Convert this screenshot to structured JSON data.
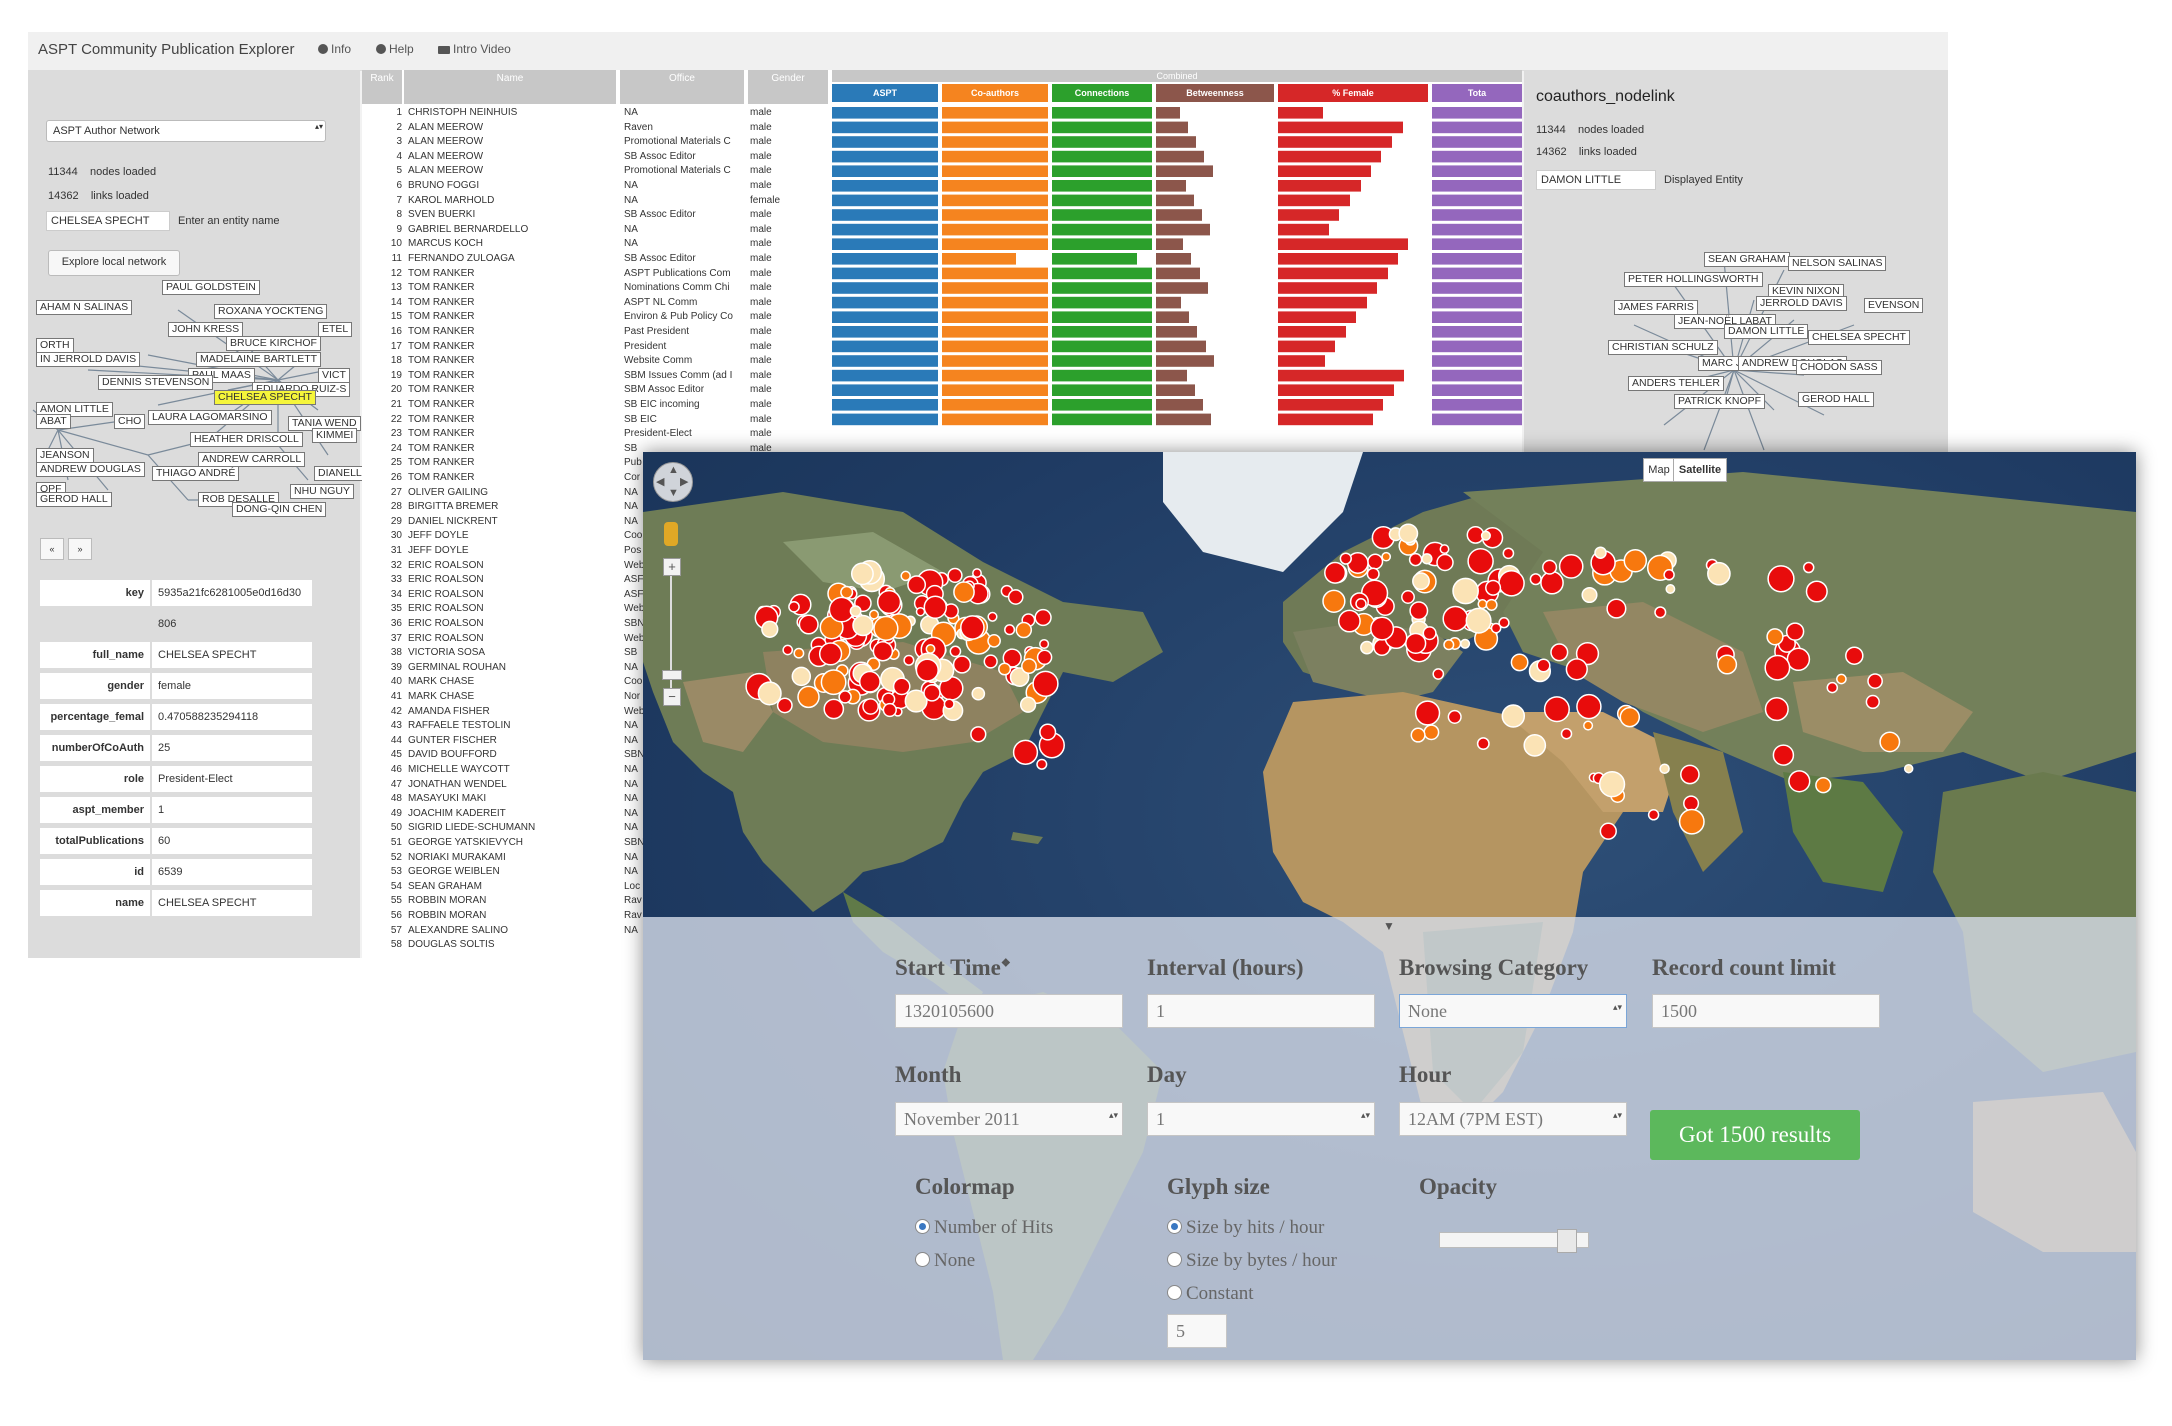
{
  "app": {
    "title": "ASPT Community Publication Explorer",
    "nav": [
      "Info",
      "Help",
      "Intro Video"
    ]
  },
  "left_panel": {
    "network_select": "ASPT Author Network",
    "nodes_count": "11344",
    "nodes_label": "nodes loaded",
    "links_count": "14362",
    "links_label": "links loaded",
    "entity_value": "CHELSEA SPECHT",
    "entity_hint": "Enter an entity name",
    "explore_button": "Explore local network",
    "network_labels": [
      "PAUL GOLDSTEIN",
      "AHAM N SALINAS",
      "ROXANA YOCKTENG",
      "JOHN KRESS",
      "ETEL",
      "ORTH",
      "BRUCE KIRCHOF",
      "IN JERROLD DAVIS",
      "MADELAINE BARTLETT",
      "PAUL MAAS",
      "VICT",
      "DENNIS STEVENSON",
      "EDUARDO RUIZ-S",
      "CHELSEA SPECHT",
      "AMON LITTLE",
      "ABAT",
      "CHO",
      "LAURA LAGOMARSINO",
      "TANIA WEND",
      "KIMMEI",
      "HEATHER DRISCOLL",
      "JEANSON",
      "ANDREW CARROLL",
      "ANDREW DOUGLAS",
      "THIAGO ANDRÉ",
      "DIANELL",
      "OPF",
      "NHU NGUY",
      "GEROD HALL",
      "ROB DESALLE",
      "DONG-QIN CHEN"
    ],
    "pager": [
      "«",
      "»"
    ],
    "details": [
      {
        "key": "key",
        "value": "5935a21fc6281005e0d16d30"
      },
      {
        "key": "",
        "value": "806"
      },
      {
        "key": "full_name",
        "value": "CHELSEA SPECHT"
      },
      {
        "key": "gender",
        "value": "female"
      },
      {
        "key": "percentage_femal",
        "value": "0.470588235294118"
      },
      {
        "key": "numberOfCoAuth",
        "value": "25"
      },
      {
        "key": "role",
        "value": "President-Elect"
      },
      {
        "key": "aspt_member",
        "value": "1"
      },
      {
        "key": "totalPublications",
        "value": "60"
      },
      {
        "key": "id",
        "value": "6539"
      },
      {
        "key": "name",
        "value": "CHELSEA SPECHT"
      }
    ]
  },
  "table": {
    "headers": [
      "Rank",
      "Name",
      "Office",
      "Gender"
    ],
    "combined_label": "Combined",
    "metrics": [
      {
        "label": "ASPT",
        "color": "#2a7ab8"
      },
      {
        "label": "Co-authors",
        "color": "#f5841f"
      },
      {
        "label": "Connections",
        "color": "#2ca02c"
      },
      {
        "label": "Betweenness",
        "color": "#8c564b"
      },
      {
        "label": "% Female",
        "color": "#d62728"
      },
      {
        "label": "Tota",
        "color": "#9467bd"
      }
    ],
    "rows": [
      [
        "1",
        "CHRISTOPH NEINHUIS",
        "NA",
        "male"
      ],
      [
        "2",
        "ALAN MEEROW",
        "Raven",
        "male"
      ],
      [
        "3",
        "ALAN MEEROW",
        "Promotional Materials C",
        "male"
      ],
      [
        "4",
        "ALAN MEEROW",
        "SB Assoc Editor",
        "male"
      ],
      [
        "5",
        "ALAN MEEROW",
        "Promotional Materials C",
        "male"
      ],
      [
        "6",
        "BRUNO FOGGI",
        "NA",
        "male"
      ],
      [
        "7",
        "KAROL MARHOLD",
        "NA",
        "female"
      ],
      [
        "8",
        "SVEN BUERKI",
        "SB Assoc Editor",
        "male"
      ],
      [
        "9",
        "GABRIEL BERNARDELLO",
        "NA",
        "male"
      ],
      [
        "10",
        "MARCUS KOCH",
        "NA",
        "male"
      ],
      [
        "11",
        "FERNANDO ZULOAGA",
        "SB Assoc Editor",
        "male"
      ],
      [
        "12",
        "TOM RANKER",
        "ASPT Publications Com",
        "male"
      ],
      [
        "13",
        "TOM RANKER",
        "Nominations Comm Chi",
        "male"
      ],
      [
        "14",
        "TOM RANKER",
        "ASPT NL Comm",
        "male"
      ],
      [
        "15",
        "TOM RANKER",
        "Environ & Pub Policy Co",
        "male"
      ],
      [
        "16",
        "TOM RANKER",
        "Past President",
        "male"
      ],
      [
        "17",
        "TOM RANKER",
        "President",
        "male"
      ],
      [
        "18",
        "TOM RANKER",
        "Website Comm",
        "male"
      ],
      [
        "19",
        "TOM RANKER",
        "SBM Issues Comm (ad I",
        "male"
      ],
      [
        "20",
        "TOM RANKER",
        "SBM Assoc Editor",
        "male"
      ],
      [
        "21",
        "TOM RANKER",
        "SB EIC incoming",
        "male"
      ],
      [
        "22",
        "TOM RANKER",
        "SB EIC",
        "male"
      ],
      [
        "23",
        "TOM RANKER",
        "President-Elect",
        "male"
      ],
      [
        "24",
        "TOM RANKER",
        "SB",
        "male"
      ],
      [
        "25",
        "TOM RANKER",
        "Pub",
        "male"
      ],
      [
        "26",
        "TOM RANKER",
        "Cor",
        "male"
      ],
      [
        "27",
        "OLIVER GAILING",
        "NA",
        "male"
      ],
      [
        "28",
        "BIRGITTA BREMER",
        "NA",
        "male"
      ],
      [
        "29",
        "DANIEL NICKRENT",
        "NA",
        "male"
      ],
      [
        "30",
        "JEFF DOYLE",
        "Coo",
        "male"
      ],
      [
        "31",
        "JEFF DOYLE",
        "Pos",
        "male"
      ],
      [
        "32",
        "ERIC ROALSON",
        "Web",
        "male"
      ],
      [
        "33",
        "ERIC ROALSON",
        "ASF",
        "male"
      ],
      [
        "34",
        "ERIC ROALSON",
        "ASF",
        "male"
      ],
      [
        "35",
        "ERIC ROALSON",
        "Web",
        "male"
      ],
      [
        "36",
        "ERIC ROALSON",
        "SBN",
        "male"
      ],
      [
        "37",
        "ERIC ROALSON",
        "Web",
        "male"
      ],
      [
        "38",
        "VICTORIA SOSA",
        "SB",
        "male"
      ],
      [
        "39",
        "GERMINAL ROUHAN",
        "NA",
        "male"
      ],
      [
        "40",
        "MARK CHASE",
        "Coo",
        "male"
      ],
      [
        "41",
        "MARK CHASE",
        "Nor",
        "male"
      ],
      [
        "42",
        "AMANDA FISHER",
        "Web",
        "male"
      ],
      [
        "43",
        "RAFFAELE TESTOLIN",
        "NA",
        "male"
      ],
      [
        "44",
        "GUNTER FISCHER",
        "NA",
        "male"
      ],
      [
        "45",
        "DAVID BOUFFORD",
        "SBN",
        "male"
      ],
      [
        "46",
        "MICHELLE WAYCOTT",
        "NA",
        "male"
      ],
      [
        "47",
        "JONATHAN WENDEL",
        "NA",
        "male"
      ],
      [
        "48",
        "MASAYUKI MAKI",
        "NA",
        "male"
      ],
      [
        "49",
        "JOACHIM KADEREIT",
        "NA",
        "male"
      ],
      [
        "50",
        "SIGRID LIEDE-SCHUMANN",
        "NA",
        "male"
      ],
      [
        "51",
        "GEORGE YATSKIEVYCH",
        "SBN",
        "male"
      ],
      [
        "52",
        "NORIAKI MURAKAMI",
        "NA",
        "male"
      ],
      [
        "53",
        "GEORGE WEIBLEN",
        "NA",
        "male"
      ],
      [
        "54",
        "SEAN GRAHAM",
        "Loc",
        "male"
      ],
      [
        "55",
        "ROBBIN MORAN",
        "Rav",
        "male"
      ],
      [
        "56",
        "ROBBIN MORAN",
        "Rav",
        "male"
      ],
      [
        "57",
        "ALEXANDRE SALINO",
        "NA",
        "male"
      ],
      [
        "58",
        "DOUGLAS SOLTIS",
        "",
        "male"
      ]
    ]
  },
  "right_panel": {
    "title": "coauthors_nodelink",
    "nodes_count": "11344",
    "nodes_label": "nodes loaded",
    "links_count": "14362",
    "links_label": "links loaded",
    "entity_value": "DAMON LITTLE",
    "entity_hint": "Displayed Entity",
    "network_labels": [
      "SEAN GRAHAM",
      "NELSON SALINAS",
      "PETER HOLLINGSWORTH",
      "KEVIN NIXON",
      "JAMES FARRIS",
      "JERROLD DAVIS",
      "EVENSON",
      "JEAN-NOËL LABAT",
      "DAMON LITTLE",
      "CHELSEA SPECHT",
      "CHRISTIAN SCHULZ",
      "MARC JE",
      "ANDREW DOUGLAS",
      "CHODON SASS",
      "ANDERS TEHLER",
      "PATRICK KNOPF",
      "GEROD HALL"
    ]
  },
  "map_app": {
    "map_types": [
      "Map",
      "Satellite"
    ],
    "form": {
      "start_time_label": "Start Time",
      "start_time_value": "1320105600",
      "interval_label": "Interval (hours)",
      "interval_value": "1",
      "browsing_label": "Browsing Category",
      "browsing_value": "None",
      "record_limit_label": "Record count limit",
      "record_limit_value": "1500",
      "month_label": "Month",
      "month_value": "November 2011",
      "day_label": "Day",
      "day_value": "1",
      "hour_label": "Hour",
      "hour_value": "12AM (7PM EST)",
      "go_button": "Got 1500 results",
      "colormap_label": "Colormap",
      "colormap_options": [
        "Number of Hits",
        "None"
      ],
      "glyph_label": "Glyph size",
      "glyph_options": [
        "Size by hits / hour",
        "Size by bytes / hour",
        "Constant"
      ],
      "glyph_constant_value": "5",
      "opacity_label": "Opacity",
      "opacity_value": 0.85
    }
  }
}
